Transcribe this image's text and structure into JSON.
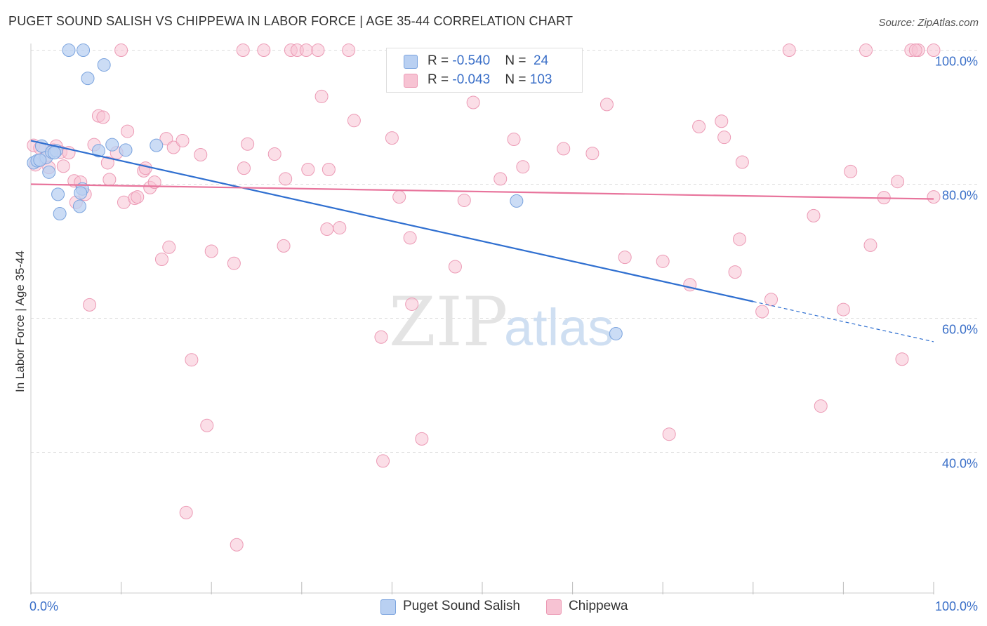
{
  "header": {
    "title": "PUGET SOUND SALISH VS CHIPPEWA IN LABOR FORCE | AGE 35-44 CORRELATION CHART",
    "source": "Source: ZipAtlas.com"
  },
  "watermark": {
    "zip": "ZIP",
    "atlas": "atlas"
  },
  "colors": {
    "blue_fill": "#b9d0f2",
    "blue_stroke": "#7aa3de",
    "blue_line": "#2f6fd0",
    "pink_fill": "#f7c3d3",
    "pink_stroke": "#ec9ab5",
    "pink_line": "#e8749c",
    "axis_label": "#3a6fc8"
  },
  "legend": {
    "rows": [
      {
        "r_label": "R = ",
        "r_value": "-0.540",
        "n_label": "N = ",
        "n_value": "24"
      },
      {
        "r_label": "R = ",
        "r_value": "-0.043",
        "n_label": "N = ",
        "n_value": "103"
      }
    ]
  },
  "chart_data": {
    "type": "scatter",
    "title": "PUGET SOUND SALISH VS CHIPPEWA IN LABOR FORCE | AGE 35-44 CORRELATION CHART",
    "xlabel": "",
    "ylabel": "In Labor Force | Age 35-44",
    "xlim": [
      0,
      100
    ],
    "ylim": [
      19,
      101
    ],
    "x_tick_labels": [
      "0.0%",
      "100.0%"
    ],
    "y_ticks": [
      40,
      60,
      80,
      100
    ],
    "y_tick_labels": [
      "40.0%",
      "60.0%",
      "80.0%",
      "100.0%"
    ],
    "grid": true,
    "legend_position": "top-center",
    "series": [
      {
        "name": "Puget Sound Salish",
        "color": "#b9d0f2",
        "trend": {
          "x": [
            0,
            80
          ],
          "y": [
            86.5,
            62.5
          ],
          "dashed_to": [
            100,
            56.5
          ]
        },
        "points": [
          [
            0.3,
            83.2
          ],
          [
            0.7,
            83.5
          ],
          [
            1.2,
            85.7
          ],
          [
            1.7,
            84.0
          ],
          [
            2.0,
            81.8
          ],
          [
            2.3,
            84.8
          ],
          [
            2.8,
            85.0
          ],
          [
            3.0,
            78.5
          ],
          [
            3.2,
            75.6
          ],
          [
            4.2,
            100.0
          ],
          [
            5.7,
            79.3
          ],
          [
            5.5,
            78.7
          ],
          [
            5.4,
            76.7
          ],
          [
            5.8,
            100.0
          ],
          [
            6.3,
            95.8
          ],
          [
            7.5,
            85.0
          ],
          [
            8.1,
            97.8
          ],
          [
            9.0,
            85.9
          ],
          [
            10.5,
            85.1
          ],
          [
            13.9,
            85.8
          ],
          [
            53.8,
            77.5
          ],
          [
            64.8,
            57.7
          ],
          [
            1.0,
            83.6
          ],
          [
            2.6,
            84.7
          ]
        ]
      },
      {
        "name": "Chippewa",
        "color": "#f7c3d3",
        "trend": {
          "x": [
            0,
            100
          ],
          "y": [
            80.0,
            77.8
          ]
        },
        "points": [
          [
            0.3,
            85.8
          ],
          [
            0.5,
            82.9
          ],
          [
            1.0,
            85.4
          ],
          [
            1.5,
            83.9
          ],
          [
            2.0,
            82.5
          ],
          [
            2.5,
            85.1
          ],
          [
            2.8,
            85.7
          ],
          [
            3.3,
            84.8
          ],
          [
            3.6,
            82.7
          ],
          [
            4.2,
            84.7
          ],
          [
            4.8,
            80.5
          ],
          [
            5.0,
            77.3
          ],
          [
            5.5,
            80.3
          ],
          [
            6.0,
            78.5
          ],
          [
            6.5,
            62.0
          ],
          [
            7.0,
            85.9
          ],
          [
            7.5,
            90.2
          ],
          [
            8.0,
            90.0
          ],
          [
            8.5,
            83.2
          ],
          [
            8.7,
            80.7
          ],
          [
            9.5,
            84.7
          ],
          [
            10.0,
            100.0
          ],
          [
            10.3,
            77.3
          ],
          [
            10.7,
            87.9
          ],
          [
            11.5,
            77.9
          ],
          [
            11.8,
            78.1
          ],
          [
            12.5,
            82.0
          ],
          [
            12.7,
            82.4
          ],
          [
            13.2,
            79.5
          ],
          [
            13.7,
            80.3
          ],
          [
            14.5,
            68.8
          ],
          [
            15.0,
            86.8
          ],
          [
            15.3,
            70.6
          ],
          [
            15.8,
            85.5
          ],
          [
            16.8,
            86.5
          ],
          [
            17.2,
            31.0
          ],
          [
            17.8,
            53.8
          ],
          [
            18.8,
            84.4
          ],
          [
            19.5,
            44.0
          ],
          [
            20.0,
            70.0
          ],
          [
            22.5,
            68.2
          ],
          [
            22.8,
            26.2
          ],
          [
            23.5,
            100.0
          ],
          [
            23.6,
            82.4
          ],
          [
            24.0,
            86.0
          ],
          [
            25.8,
            100.0
          ],
          [
            27.0,
            84.5
          ],
          [
            28.0,
            70.8
          ],
          [
            28.2,
            80.8
          ],
          [
            28.8,
            100.0
          ],
          [
            29.5,
            100.0
          ],
          [
            30.5,
            100.0
          ],
          [
            30.7,
            82.2
          ],
          [
            31.8,
            100.0
          ],
          [
            32.2,
            93.1
          ],
          [
            32.8,
            73.3
          ],
          [
            33.0,
            82.2
          ],
          [
            34.2,
            73.5
          ],
          [
            35.2,
            100.0
          ],
          [
            35.8,
            89.5
          ],
          [
            38.8,
            57.2
          ],
          [
            39.0,
            38.7
          ],
          [
            40.0,
            86.9
          ],
          [
            40.8,
            78.1
          ],
          [
            42.0,
            72.0
          ],
          [
            42.2,
            62.1
          ],
          [
            42.8,
            97.0
          ],
          [
            43.3,
            42.0
          ],
          [
            47.0,
            67.7
          ],
          [
            48.0,
            77.6
          ],
          [
            49.0,
            92.2
          ],
          [
            52.0,
            80.8
          ],
          [
            53.5,
            86.7
          ],
          [
            53.8,
            95.2
          ],
          [
            54.5,
            82.6
          ],
          [
            59.0,
            85.3
          ],
          [
            62.2,
            84.6
          ],
          [
            63.8,
            91.9
          ],
          [
            65.8,
            69.1
          ],
          [
            70.0,
            68.5
          ],
          [
            70.7,
            42.7
          ],
          [
            73.0,
            65.0
          ],
          [
            74.0,
            88.6
          ],
          [
            76.5,
            89.4
          ],
          [
            76.8,
            87.0
          ],
          [
            78.0,
            66.9
          ],
          [
            78.5,
            71.8
          ],
          [
            78.8,
            83.3
          ],
          [
            81.0,
            61.0
          ],
          [
            82.0,
            62.8
          ],
          [
            84.0,
            100.0
          ],
          [
            86.7,
            75.3
          ],
          [
            87.5,
            46.9
          ],
          [
            90.0,
            61.3
          ],
          [
            90.8,
            81.9
          ],
          [
            92.5,
            100.0
          ],
          [
            93.0,
            70.9
          ],
          [
            94.5,
            78.0
          ],
          [
            96.0,
            80.4
          ],
          [
            96.5,
            53.9
          ],
          [
            97.5,
            100.0
          ],
          [
            98.3,
            100.0
          ],
          [
            100.0,
            78.1
          ],
          [
            100.0,
            100.0
          ],
          [
            98.0,
            100.0
          ]
        ]
      }
    ]
  },
  "bottom_legend": {
    "items": [
      {
        "label": "Puget Sound Salish"
      },
      {
        "label": "Chippewa"
      }
    ]
  }
}
